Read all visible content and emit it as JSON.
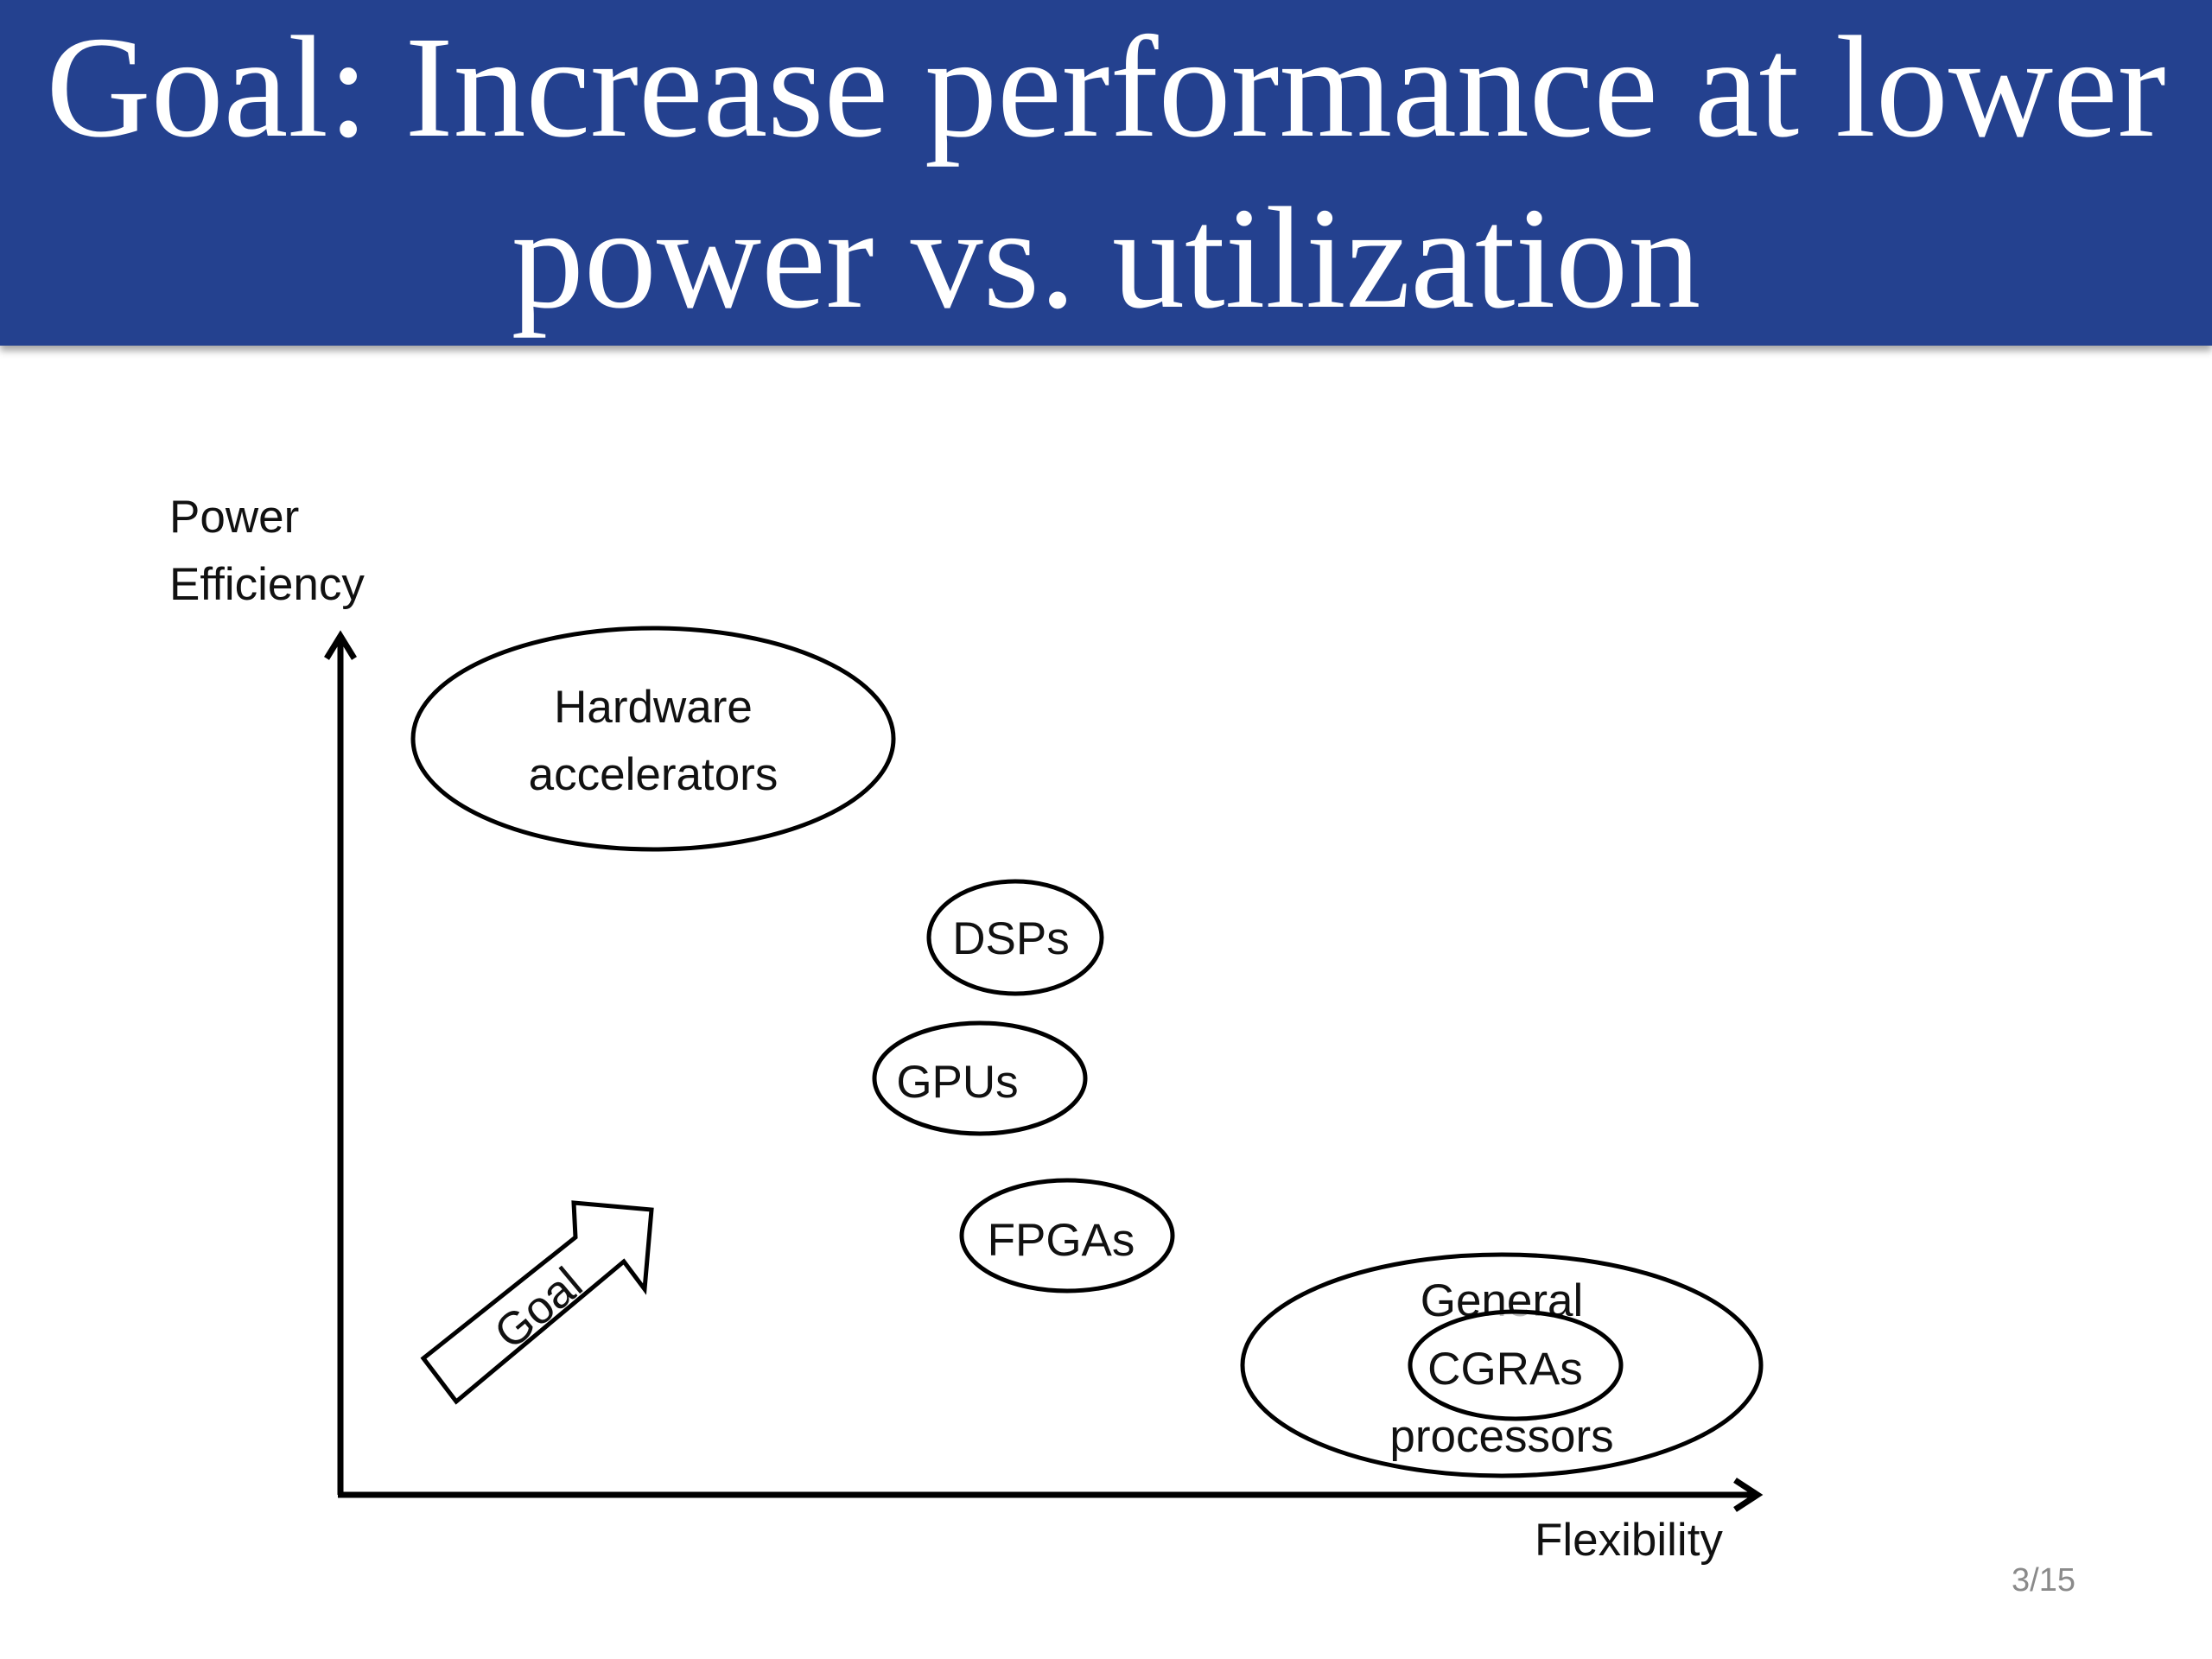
{
  "title": {
    "line1": "Goal: Increase performance at lower",
    "line2": "power vs. utilization"
  },
  "diagram": {
    "y_axis_label": [
      "Power",
      "Efficiency"
    ],
    "x_axis_label": "Flexibility",
    "regions": {
      "hardware_accelerators": [
        "Hardware",
        "accelerators"
      ],
      "dsps": "DSPs",
      "gpus": "GPUs",
      "fpgas": "FPGAs",
      "general_purpose": [
        "General",
        "processors"
      ],
      "cgras": "CGRAs"
    },
    "goal_arrow_label": "Goal"
  },
  "footer": {
    "page_number": "3/15"
  },
  "colors": {
    "title_bar": "#24418f",
    "title_text": "#ffffff",
    "stroke": "#000000"
  }
}
